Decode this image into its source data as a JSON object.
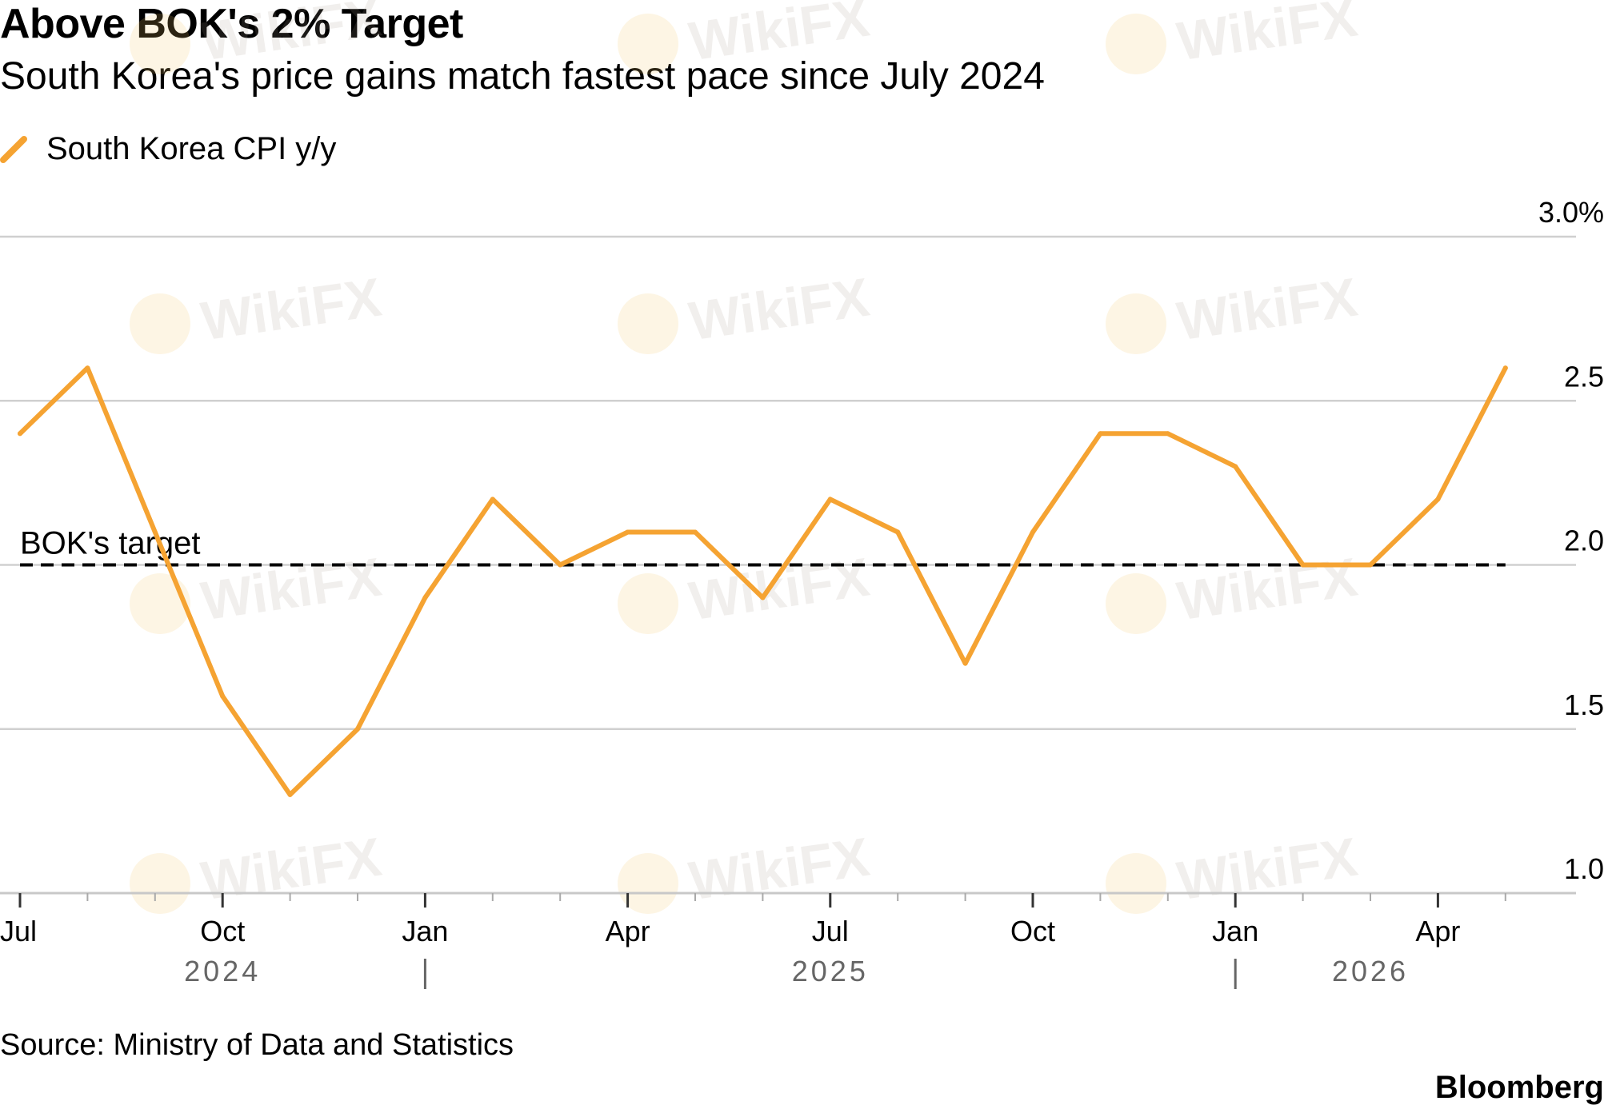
{
  "title": "Above BOK's 2% Target",
  "subtitle": "South Korea's price gains match fastest pace since July 2024",
  "legend": {
    "label": "South Korea CPI y/y"
  },
  "source": "Source: Ministry of Data and Statistics",
  "brand": "Bloomberg",
  "watermark": "WikiFX",
  "colors": {
    "line": "#f5a332",
    "grid": "#d0d0d0",
    "target": "#000000",
    "year_label": "#666666"
  },
  "chart_data": {
    "type": "line",
    "title": "Above BOK's 2% Target",
    "subtitle": "South Korea's price gains match fastest pace since July 2024",
    "x": [
      "2024-07",
      "2024-08",
      "2024-09",
      "2024-10",
      "2024-11",
      "2024-12",
      "2025-01",
      "2025-02",
      "2025-03",
      "2025-04",
      "2025-05",
      "2025-06",
      "2025-07",
      "2025-08",
      "2025-09",
      "2025-10",
      "2025-11",
      "2025-12",
      "2026-01",
      "2026-02",
      "2026-03",
      "2026-04",
      "2026-05"
    ],
    "series": [
      {
        "name": "South Korea CPI y/y",
        "values": [
          2.4,
          2.6,
          2.1,
          1.6,
          1.3,
          1.5,
          1.9,
          2.2,
          2.0,
          2.1,
          2.1,
          1.9,
          2.2,
          2.1,
          1.7,
          2.1,
          2.4,
          2.4,
          2.3,
          2.0,
          2.0,
          2.2,
          2.6
        ]
      }
    ],
    "reference_line": {
      "label": "BOK's target",
      "value": 2.0,
      "style": "dashed"
    },
    "ylim": [
      1.0,
      3.0
    ],
    "y_ticks": [
      "3.0%",
      "2.5",
      "2.0",
      "1.5",
      "1.0"
    ],
    "y_tick_values": [
      3.0,
      2.5,
      2.0,
      1.5,
      1.0
    ],
    "x_tick_labels": [
      "Jul",
      "Oct",
      "Jan",
      "Apr",
      "Jul",
      "Oct",
      "Jan",
      "Apr"
    ],
    "x_tick_dates": [
      "2024-07",
      "2024-10",
      "2025-01",
      "2025-04",
      "2025-07",
      "2025-10",
      "2026-01",
      "2026-04"
    ],
    "year_labels": [
      {
        "label": "2024",
        "center": "2024-10"
      },
      {
        "label": "2025",
        "center": "2025-07"
      },
      {
        "label": "2026",
        "center": "2026-03"
      }
    ],
    "year_dividers": [
      "2025-01",
      "2026-01"
    ],
    "grid": true,
    "y_axis_position": "right",
    "legend_position": "top-left"
  }
}
